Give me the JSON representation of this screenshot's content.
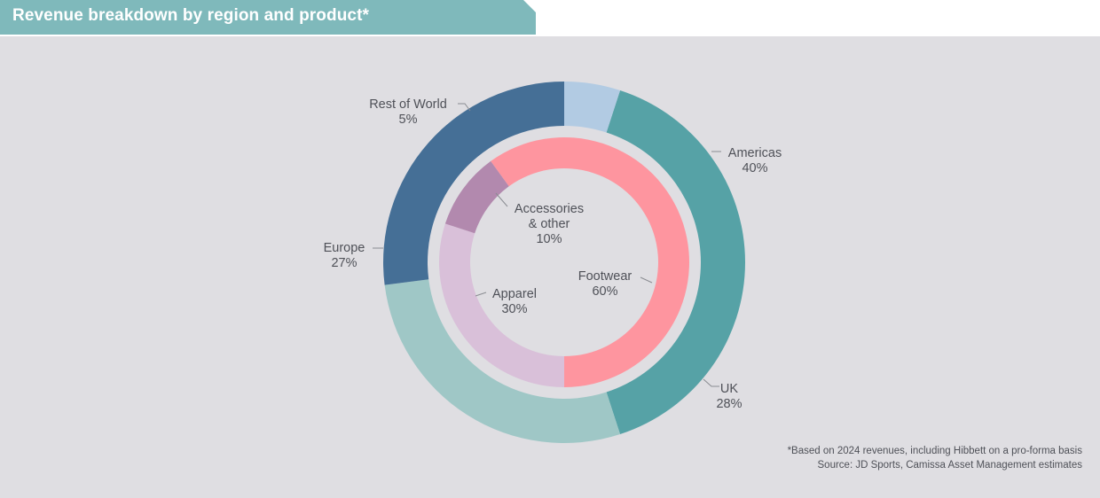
{
  "title": "Revenue breakdown by region and product*",
  "footnotes": {
    "basis": "*Based on 2024 revenues, including Hibbett on a pro-forma basis",
    "source": "Source: JD Sports, Camissa Asset Management estimates"
  },
  "colors": {
    "title_bar": "#7fb9bb",
    "panel": "#dfdee2",
    "americas": "#56a2a6",
    "uk": "#9fc7c6",
    "europe": "#456f96",
    "rest_of_world": "#b2cbe3",
    "footwear": "#fe959f",
    "apparel": "#d9c0d9",
    "accessories": "#b289ae"
  },
  "chart_data": [
    {
      "type": "pie",
      "ring": "outer",
      "dimension": "region",
      "slices": [
        {
          "label": "Americas",
          "value": 40,
          "display": "40%"
        },
        {
          "label": "UK",
          "value": 28,
          "display": "28%"
        },
        {
          "label": "Europe",
          "value": 27,
          "display": "27%"
        },
        {
          "label": "Rest of World",
          "value": 5,
          "display": "5%"
        }
      ]
    },
    {
      "type": "pie",
      "ring": "inner",
      "dimension": "product",
      "slices": [
        {
          "label": "Footwear",
          "value": 60,
          "display": "60%"
        },
        {
          "label": "Apparel",
          "value": 30,
          "display": "30%"
        },
        {
          "label": "Accessories & other",
          "value": 10,
          "display": "10%"
        }
      ]
    }
  ]
}
